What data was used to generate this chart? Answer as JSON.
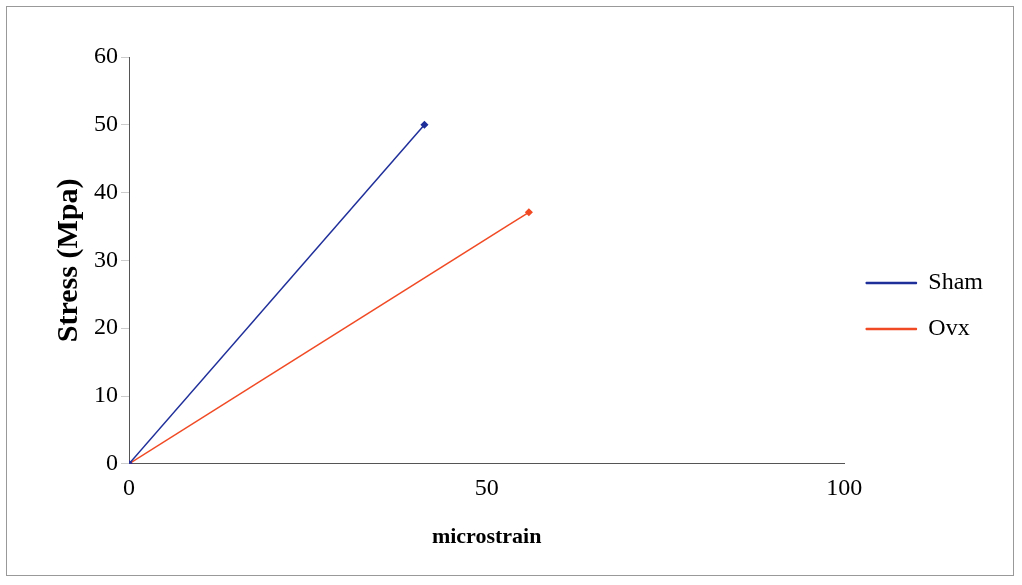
{
  "chart_data": {
    "type": "line",
    "xlabel": "microstrain",
    "ylabel": "Stress (Mpa)",
    "xlim": [
      0,
      100
    ],
    "xticks": [
      0,
      50,
      100
    ],
    "ylim": [
      0,
      60
    ],
    "yticks": [
      0,
      10,
      20,
      30,
      40,
      50,
      60
    ],
    "series": [
      {
        "name": "Sham",
        "color": "#1f2f9a",
        "x": [
          0,
          41.3
        ],
        "values": [
          0,
          50
        ]
      },
      {
        "name": "Ovx",
        "color": "#f04a24",
        "x": [
          0,
          55.9
        ],
        "values": [
          0,
          37.1
        ]
      }
    ],
    "grid": false,
    "legend": "right",
    "marker": "diamond",
    "line_style": "solid"
  }
}
